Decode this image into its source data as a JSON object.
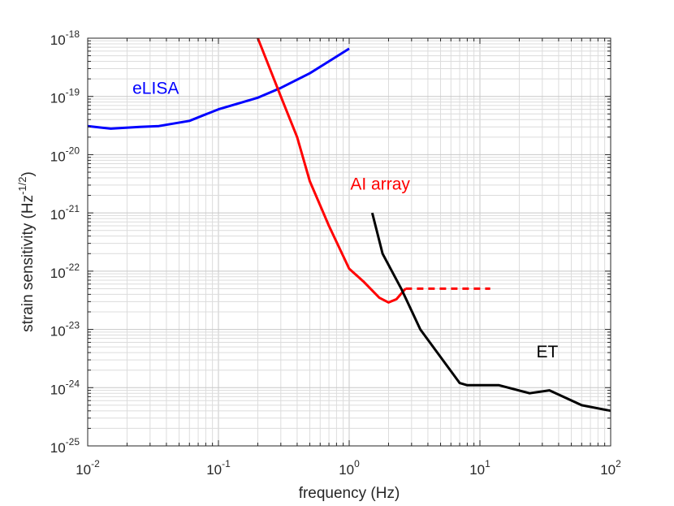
{
  "chart_data": {
    "type": "line",
    "xlabel": "frequency (Hz)",
    "ylabel": {
      "base": "strain sensitivity (Hz",
      "exp": "-1/2",
      "close": ")"
    },
    "x_scale": "log",
    "y_scale": "log",
    "xlim": [
      0.01,
      100
    ],
    "ylim": [
      1e-25,
      1e-18
    ],
    "grid": "major and minor",
    "x_ticks": [
      {
        "value": 0.01,
        "base": "10",
        "exp": "-2"
      },
      {
        "value": 0.1,
        "base": "10",
        "exp": "-1"
      },
      {
        "value": 1,
        "base": "10",
        "exp": "0"
      },
      {
        "value": 10,
        "base": "10",
        "exp": "1"
      },
      {
        "value": 100,
        "base": "10",
        "exp": "2"
      }
    ],
    "y_ticks": [
      {
        "value": 1e-25,
        "base": "10",
        "exp": "-25"
      },
      {
        "value": 1e-24,
        "base": "10",
        "exp": "-24"
      },
      {
        "value": 1e-23,
        "base": "10",
        "exp": "-23"
      },
      {
        "value": 1e-22,
        "base": "10",
        "exp": "-22"
      },
      {
        "value": 1e-21,
        "base": "10",
        "exp": "-21"
      },
      {
        "value": 1e-20,
        "base": "10",
        "exp": "-20"
      },
      {
        "value": 1e-19,
        "base": "10",
        "exp": "-19"
      },
      {
        "value": 1e-18,
        "base": "10",
        "exp": "-18"
      }
    ],
    "series": [
      {
        "name": "eLISA",
        "color": "#0000ff",
        "dashed": false,
        "points": [
          [
            0.01,
            3.1e-20
          ],
          [
            0.015,
            2.8e-20
          ],
          [
            0.025,
            3e-20
          ],
          [
            0.035,
            3.1e-20
          ],
          [
            0.06,
            3.8e-20
          ],
          [
            0.1,
            6e-20
          ],
          [
            0.2,
            9.5e-20
          ],
          [
            0.3,
            1.4e-19
          ],
          [
            0.5,
            2.5e-19
          ],
          [
            0.7,
            4e-19
          ],
          [
            1.0,
            6.6e-19
          ]
        ]
      },
      {
        "name": "AI array",
        "color": "#ff0000",
        "dashed": false,
        "points": [
          [
            0.2,
            1e-18
          ],
          [
            0.3,
            1e-19
          ],
          [
            0.4,
            2e-20
          ],
          [
            0.5,
            3.5e-21
          ],
          [
            0.7,
            6e-22
          ],
          [
            1.0,
            1.1e-22
          ],
          [
            1.3,
            6.5e-23
          ],
          [
            1.7,
            3.5e-23
          ],
          [
            2.0,
            2.9e-23
          ],
          [
            2.3,
            3.3e-23
          ],
          [
            2.7,
            5e-23
          ]
        ]
      },
      {
        "name": "AI array",
        "color": "#ff0000",
        "dashed": true,
        "points": [
          [
            2.7,
            5e-23
          ],
          [
            12,
            5e-23
          ]
        ]
      },
      {
        "name": "ET",
        "color": "#000000",
        "dashed": false,
        "points": [
          [
            1.5,
            1e-21
          ],
          [
            1.8,
            2e-22
          ],
          [
            2.5,
            5e-23
          ],
          [
            3.5,
            1e-23
          ],
          [
            7.0,
            1.2e-24
          ],
          [
            8.0,
            1.1e-24
          ],
          [
            14,
            1.1e-24
          ],
          [
            24,
            8e-25
          ],
          [
            34,
            9e-25
          ],
          [
            60,
            5e-25
          ],
          [
            100,
            4e-25
          ]
        ]
      }
    ],
    "annotations": [
      {
        "text": "eLISA",
        "color": "#0000ff",
        "x": 0.022,
        "y": 1.1e-19
      },
      {
        "text": "AI array",
        "color": "#ff0000",
        "x": 1.02,
        "y": 2.5e-21
      },
      {
        "text": "ET",
        "color": "#000000",
        "x": 27,
        "y": 3.3e-24
      }
    ]
  }
}
